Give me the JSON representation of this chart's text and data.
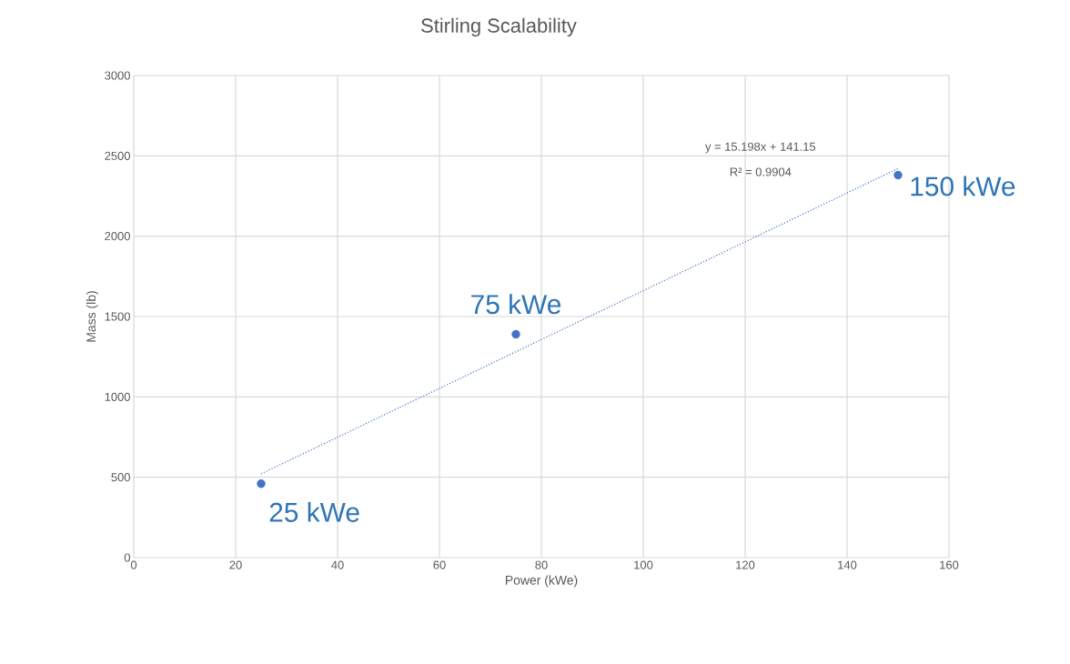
{
  "chart_data": {
    "type": "scatter",
    "title": "Stirling Scalability",
    "xlabel": "Power (kWe)",
    "ylabel": "Mass (lb)",
    "series": [
      {
        "color": "#4472c4",
        "x": [
          25,
          75,
          150
        ],
        "values": [
          460,
          1390,
          2380
        ],
        "marker": "circle"
      },
      {
        "type": "line",
        "color": "#4472c4",
        "x": [
          25,
          150
        ],
        "values": [
          521,
          2421
        ],
        "line_style": "dotted",
        "marker": "none"
      }
    ],
    "xlim": [
      0,
      160
    ],
    "xticks": [
      0,
      20,
      40,
      60,
      80,
      100,
      120,
      140,
      160
    ],
    "ylim": [
      0,
      3000
    ],
    "yticks": [
      0,
      500,
      1000,
      1500,
      2000,
      2500,
      3000
    ],
    "grid": true,
    "annotations": [
      {
        "text": "25 kWe",
        "x": 25,
        "y": 460
      },
      {
        "text": "75 kWe",
        "x": 75,
        "y": 1390
      },
      {
        "text": "150 kWe",
        "x": 150,
        "y": 2380
      },
      "y = 15.198x + 141.15",
      "R² = 0.9904"
    ]
  }
}
